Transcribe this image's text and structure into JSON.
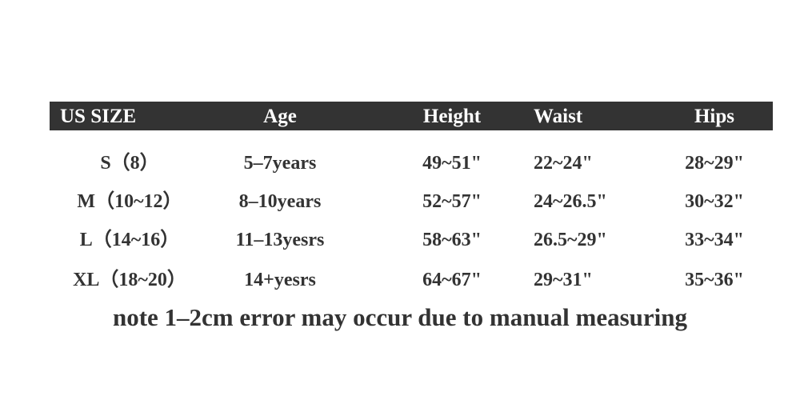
{
  "table": {
    "header": [
      "US SIZE",
      "Age",
      "Height",
      "Waist",
      "Hips"
    ],
    "rows": [
      [
        "S（8）",
        "5–7years",
        "49~51\"",
        "22~24\"",
        "28~29\""
      ],
      [
        "M（10~12）",
        "8–10years",
        "52~57\"",
        "24~26.5\"",
        "30~32\""
      ],
      [
        "L（14~16）",
        "11–13yesrs",
        "58~63\"",
        "26.5~29\"",
        "33~34\""
      ],
      [
        "XL（18~20）",
        "14+yesrs",
        "64~67\"",
        "29~31\"",
        "35~36\""
      ]
    ]
  },
  "note": "note 1–2cm error may occur due to manual measuring"
}
